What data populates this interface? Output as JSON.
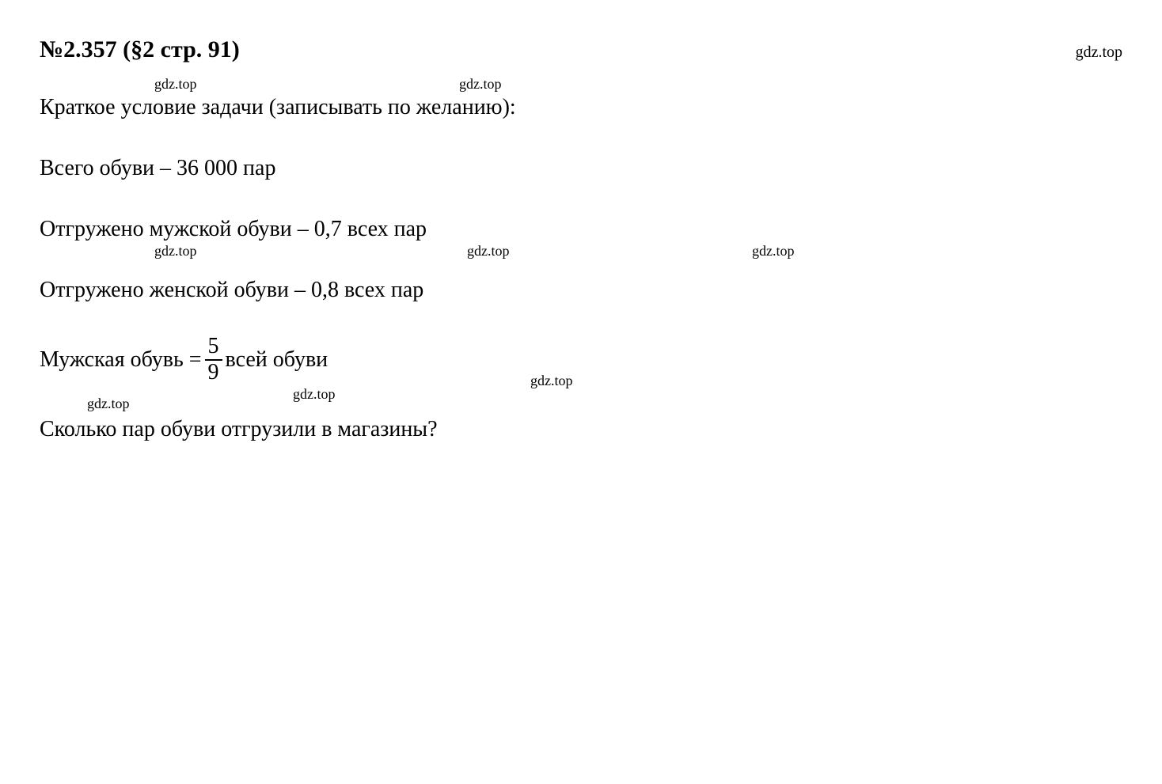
{
  "heading": {
    "number": "№2.357",
    "section": "(§2 стр. 91)"
  },
  "watermark": "gdz.top",
  "intro": "Краткое условие задачи (записывать по желанию):",
  "lines": {
    "total": "Всего обуви – 36 000 пар",
    "mens_shipped": "Отгружено мужской обуви – 0,7 всех пар",
    "womens_shipped": "Отгружено женской обуви – 0,8 всех пар",
    "mens_fraction_prefix": "Мужская обувь = ",
    "mens_fraction_suffix": " всей обуви",
    "fraction": {
      "numerator": "5",
      "denominator": "9"
    },
    "question": "Сколько пар обуви отгрузили в магазины?"
  },
  "colors": {
    "text": "#000000",
    "background": "#ffffff"
  },
  "typography": {
    "body_fontsize": 28,
    "heading_fontsize": 30,
    "watermark_fontsize": 18,
    "font_family": "Times New Roman"
  }
}
